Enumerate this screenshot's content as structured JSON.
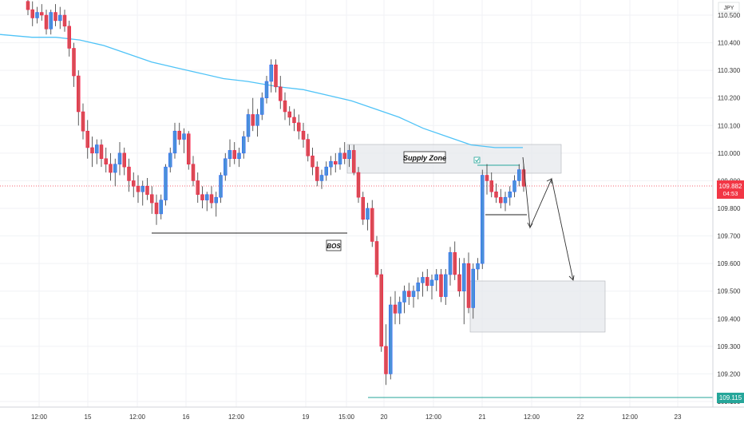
{
  "chart_data": {
    "type": "candlestick",
    "currency": "JPY",
    "y_ticks": [
      "110.500",
      "110.400",
      "110.300",
      "110.200",
      "110.100",
      "110.000",
      "109.900",
      "109.800",
      "109.700",
      "109.600",
      "109.500",
      "109.400",
      "109.300",
      "109.200",
      "109.100"
    ],
    "x_ticks": [
      "12:00",
      "15",
      "12:00",
      "16",
      "12:00",
      "19",
      "15:00",
      "20",
      "12:00",
      "21",
      "12:00",
      "22",
      "12:00",
      "23"
    ],
    "current_price": {
      "value": "109.882",
      "countdown": "04:53",
      "y": 109.882
    },
    "support_price": {
      "value": "109.115",
      "y": 109.115
    },
    "annotations": {
      "supply_zone": "Supply Zone",
      "bos": "BOS"
    },
    "colors": {
      "up": "#2962ff",
      "down": "#ff1744",
      "up_fill": "#4a90d9",
      "down_fill": "#d84c55",
      "ma": "#4fc3f7",
      "support": "#26a69a",
      "price_tag": "#f23645"
    },
    "moving_average": [
      [
        0,
        110.43
      ],
      [
        40,
        110.42
      ],
      [
        70,
        110.42
      ],
      [
        100,
        110.41
      ],
      [
        130,
        110.39
      ],
      [
        160,
        110.36
      ],
      [
        190,
        110.33
      ],
      [
        220,
        110.31
      ],
      [
        250,
        110.29
      ],
      [
        280,
        110.27
      ],
      [
        310,
        110.26
      ],
      [
        350,
        110.24
      ],
      [
        380,
        110.23
      ],
      [
        410,
        110.21
      ],
      [
        440,
        110.19
      ],
      [
        470,
        110.16
      ],
      [
        500,
        110.13
      ],
      [
        530,
        110.09
      ],
      [
        560,
        110.06
      ],
      [
        590,
        110.03
      ],
      [
        620,
        110.02
      ],
      [
        655,
        110.02
      ]
    ],
    "candles_ohlc": [
      [
        110.55,
        110.58,
        110.5,
        110.52
      ],
      [
        110.52,
        110.55,
        110.46,
        110.49
      ],
      [
        110.49,
        110.53,
        110.47,
        110.51
      ],
      [
        110.51,
        110.54,
        110.48,
        110.5
      ],
      [
        110.5,
        110.52,
        110.43,
        110.45
      ],
      [
        110.45,
        110.52,
        110.43,
        110.51
      ],
      [
        110.51,
        110.54,
        110.46,
        110.48
      ],
      [
        110.48,
        110.53,
        110.45,
        110.5
      ],
      [
        110.5,
        110.52,
        110.44,
        110.46
      ],
      [
        110.46,
        110.48,
        110.35,
        110.38
      ],
      [
        110.38,
        110.4,
        110.24,
        110.28
      ],
      [
        110.28,
        110.3,
        110.1,
        110.15
      ],
      [
        110.15,
        110.18,
        110.05,
        110.08
      ],
      [
        110.08,
        110.12,
        109.98,
        110.02
      ],
      [
        110.02,
        110.06,
        109.95,
        110.0
      ],
      [
        110.0,
        110.05,
        109.96,
        110.03
      ],
      [
        110.03,
        110.05,
        109.95,
        109.98
      ],
      [
        109.98,
        110.02,
        109.93,
        109.96
      ],
      [
        109.96,
        110.0,
        109.9,
        109.93
      ],
      [
        109.93,
        109.98,
        109.88,
        109.96
      ],
      [
        109.96,
        110.04,
        109.92,
        110.0
      ],
      [
        110.0,
        110.02,
        109.92,
        109.95
      ],
      [
        109.95,
        109.98,
        109.86,
        109.9
      ],
      [
        109.9,
        109.93,
        109.84,
        109.88
      ],
      [
        109.88,
        109.92,
        109.82,
        109.86
      ],
      [
        109.86,
        109.9,
        109.81,
        109.88
      ],
      [
        109.88,
        109.91,
        109.83,
        109.85
      ],
      [
        109.85,
        109.88,
        109.78,
        109.82
      ],
      [
        109.82,
        109.85,
        109.74,
        109.78
      ],
      [
        109.78,
        109.85,
        109.76,
        109.83
      ],
      [
        109.83,
        109.96,
        109.81,
        109.95
      ],
      [
        109.95,
        110.02,
        109.93,
        110.0
      ],
      [
        110.0,
        110.11,
        109.98,
        110.08
      ],
      [
        110.08,
        110.11,
        110.03,
        110.05
      ],
      [
        110.05,
        110.09,
        110.0,
        110.07
      ],
      [
        110.07,
        110.08,
        109.94,
        109.96
      ],
      [
        109.96,
        109.99,
        109.88,
        109.9
      ],
      [
        109.9,
        109.93,
        109.82,
        109.85
      ],
      [
        109.85,
        109.88,
        109.8,
        109.83
      ],
      [
        109.83,
        109.86,
        109.79,
        109.85
      ],
      [
        109.85,
        109.88,
        109.8,
        109.82
      ],
      [
        109.82,
        109.86,
        109.77,
        109.84
      ],
      [
        109.84,
        109.93,
        109.82,
        109.92
      ],
      [
        109.92,
        110.0,
        109.9,
        109.98
      ],
      [
        109.98,
        110.05,
        109.95,
        110.01
      ],
      [
        110.01,
        110.04,
        109.96,
        109.98
      ],
      [
        109.98,
        110.02,
        109.95,
        110.0
      ],
      [
        110.0,
        110.08,
        109.98,
        110.06
      ],
      [
        110.06,
        110.16,
        110.04,
        110.14
      ],
      [
        110.14,
        110.2,
        110.08,
        110.1
      ],
      [
        110.1,
        110.16,
        110.06,
        110.14
      ],
      [
        110.14,
        110.22,
        110.12,
        110.2
      ],
      [
        110.2,
        110.28,
        110.18,
        110.26
      ],
      [
        110.26,
        110.34,
        110.22,
        110.32
      ],
      [
        110.32,
        110.34,
        110.22,
        110.24
      ],
      [
        110.24,
        110.28,
        110.16,
        110.19
      ],
      [
        110.19,
        110.22,
        110.12,
        110.15
      ],
      [
        110.15,
        110.17,
        110.1,
        110.13
      ],
      [
        110.13,
        110.16,
        110.08,
        110.11
      ],
      [
        110.11,
        110.14,
        110.05,
        110.08
      ],
      [
        110.08,
        110.11,
        110.02,
        110.05
      ],
      [
        110.05,
        110.07,
        109.97,
        109.99
      ],
      [
        109.99,
        110.02,
        109.92,
        109.95
      ],
      [
        109.95,
        109.97,
        109.88,
        109.9
      ],
      [
        109.9,
        109.94,
        109.87,
        109.92
      ],
      [
        109.92,
        109.97,
        109.9,
        109.95
      ],
      [
        109.95,
        109.99,
        109.92,
        109.97
      ],
      [
        109.97,
        110.0,
        109.93,
        109.96
      ],
      [
        109.96,
        110.02,
        109.94,
        110.0
      ],
      [
        110.0,
        110.04,
        109.96,
        109.98
      ],
      [
        109.98,
        110.03,
        109.95,
        110.01
      ],
      [
        110.01,
        110.03,
        109.92,
        109.93
      ],
      [
        109.93,
        109.95,
        109.82,
        109.84
      ],
      [
        109.84,
        109.86,
        109.74,
        109.76
      ],
      [
        109.76,
        109.82,
        109.72,
        109.8
      ],
      [
        109.8,
        109.83,
        109.66,
        109.68
      ],
      [
        109.68,
        109.7,
        109.55,
        109.56
      ],
      [
        109.56,
        109.58,
        109.28,
        109.3
      ],
      [
        109.3,
        109.38,
        109.16,
        109.2
      ],
      [
        109.2,
        109.48,
        109.18,
        109.45
      ],
      [
        109.45,
        109.5,
        109.38,
        109.42
      ],
      [
        109.42,
        109.48,
        109.38,
        109.46
      ],
      [
        109.46,
        109.52,
        109.42,
        109.5
      ],
      [
        109.5,
        109.53,
        109.45,
        109.48
      ],
      [
        109.48,
        109.52,
        109.44,
        109.5
      ],
      [
        109.5,
        109.55,
        109.47,
        109.53
      ],
      [
        109.53,
        109.57,
        109.48,
        109.55
      ],
      [
        109.55,
        109.58,
        109.5,
        109.52
      ],
      [
        109.52,
        109.56,
        109.47,
        109.54
      ],
      [
        109.54,
        109.58,
        109.5,
        109.56
      ],
      [
        109.56,
        109.58,
        109.46,
        109.48
      ],
      [
        109.48,
        109.58,
        109.45,
        109.56
      ],
      [
        109.56,
        109.66,
        109.52,
        109.64
      ],
      [
        109.64,
        109.68,
        109.54,
        109.56
      ],
      [
        109.56,
        109.62,
        109.48,
        109.5
      ],
      [
        109.5,
        109.62,
        109.38,
        109.6
      ],
      [
        109.6,
        109.64,
        109.42,
        109.44
      ],
      [
        109.44,
        109.6,
        109.4,
        109.58
      ],
      [
        109.58,
        109.62,
        109.54,
        109.6
      ],
      [
        109.6,
        109.94,
        109.58,
        109.92
      ],
      [
        109.92,
        109.96,
        109.85,
        109.9
      ],
      [
        109.9,
        109.93,
        109.84,
        109.86
      ],
      [
        109.86,
        109.89,
        109.82,
        109.84
      ],
      [
        109.84,
        109.87,
        109.8,
        109.82
      ],
      [
        109.82,
        109.86,
        109.79,
        109.84
      ],
      [
        109.84,
        109.88,
        109.81,
        109.86
      ],
      [
        109.86,
        109.92,
        109.84,
        109.9
      ],
      [
        109.9,
        109.96,
        109.88,
        109.94
      ],
      [
        109.94,
        109.96,
        109.86,
        109.88
      ]
    ]
  }
}
